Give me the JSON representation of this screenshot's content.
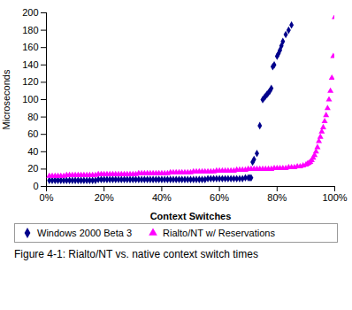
{
  "chart_data": {
    "type": "scatter",
    "caption": "Figure 4-1: Rialto/NT vs. native context switch times",
    "xlabel": "Context Switches",
    "ylabel": "Microseconds",
    "xlim": [
      0,
      1.0
    ],
    "ylim": [
      0,
      200
    ],
    "xticks": [
      {
        "value": 0.0,
        "label": "0%"
      },
      {
        "value": 0.2,
        "label": "20%"
      },
      {
        "value": 0.4,
        "label": "40%"
      },
      {
        "value": 0.6,
        "label": "60%"
      },
      {
        "value": 0.8,
        "label": "80%"
      },
      {
        "value": 1.0,
        "label": "100%"
      }
    ],
    "yticks": [
      0,
      20,
      40,
      60,
      80,
      100,
      120,
      140,
      160,
      180,
      200
    ],
    "grid": false,
    "legend": "bottom",
    "series": [
      {
        "name": "Windows 2000 Beta 3",
        "color": "#00008B",
        "marker": "diamond",
        "x": [
          0.01,
          0.02,
          0.03,
          0.04,
          0.05,
          0.06,
          0.07,
          0.08,
          0.09,
          0.1,
          0.11,
          0.12,
          0.13,
          0.14,
          0.15,
          0.16,
          0.17,
          0.18,
          0.19,
          0.2,
          0.21,
          0.22,
          0.23,
          0.24,
          0.25,
          0.26,
          0.27,
          0.28,
          0.29,
          0.3,
          0.31,
          0.32,
          0.33,
          0.34,
          0.35,
          0.36,
          0.37,
          0.38,
          0.39,
          0.4,
          0.41,
          0.42,
          0.43,
          0.44,
          0.45,
          0.46,
          0.47,
          0.48,
          0.49,
          0.5,
          0.51,
          0.52,
          0.53,
          0.54,
          0.55,
          0.56,
          0.57,
          0.58,
          0.59,
          0.6,
          0.61,
          0.62,
          0.63,
          0.64,
          0.65,
          0.66,
          0.67,
          0.68,
          0.69,
          0.7,
          0.705,
          0.71,
          0.715,
          0.72,
          0.73,
          0.74,
          0.75,
          0.755,
          0.76,
          0.765,
          0.77,
          0.775,
          0.78,
          0.785,
          0.79,
          0.8,
          0.805,
          0.81,
          0.815,
          0.82,
          0.83,
          0.84,
          0.85
        ],
        "values": [
          7,
          7,
          7,
          7,
          7,
          7,
          7,
          7,
          7,
          7,
          7,
          7,
          7,
          7,
          7,
          7,
          7,
          8,
          8,
          8,
          8,
          8,
          8,
          8,
          8,
          8,
          8,
          8,
          8,
          8,
          8,
          8,
          8,
          8,
          8,
          8,
          8,
          8,
          8,
          8,
          8,
          8,
          8,
          8,
          8,
          8,
          8,
          8,
          8,
          8,
          8,
          8,
          8,
          8,
          8,
          9,
          9,
          9,
          9,
          9,
          9,
          9,
          9,
          9,
          9,
          9,
          9,
          9,
          10,
          10,
          10,
          10,
          28,
          31,
          38,
          70,
          100,
          102,
          104,
          106,
          108,
          110,
          113,
          138,
          140,
          150,
          153,
          157,
          162,
          167,
          175,
          180,
          186
        ]
      },
      {
        "name": "Rialto/NT w/ Reservations",
        "color": "#FF00FF",
        "marker": "triangle",
        "x": [
          0.01,
          0.02,
          0.03,
          0.04,
          0.05,
          0.06,
          0.07,
          0.08,
          0.09,
          0.1,
          0.11,
          0.12,
          0.13,
          0.14,
          0.15,
          0.16,
          0.17,
          0.18,
          0.19,
          0.2,
          0.21,
          0.22,
          0.23,
          0.24,
          0.25,
          0.26,
          0.27,
          0.28,
          0.29,
          0.3,
          0.31,
          0.32,
          0.33,
          0.34,
          0.35,
          0.36,
          0.37,
          0.38,
          0.39,
          0.4,
          0.41,
          0.42,
          0.43,
          0.44,
          0.45,
          0.46,
          0.47,
          0.48,
          0.49,
          0.5,
          0.51,
          0.52,
          0.53,
          0.54,
          0.55,
          0.56,
          0.57,
          0.58,
          0.59,
          0.6,
          0.61,
          0.62,
          0.63,
          0.64,
          0.65,
          0.66,
          0.67,
          0.68,
          0.69,
          0.7,
          0.71,
          0.72,
          0.73,
          0.74,
          0.75,
          0.76,
          0.77,
          0.78,
          0.79,
          0.8,
          0.81,
          0.82,
          0.83,
          0.84,
          0.85,
          0.86,
          0.87,
          0.88,
          0.89,
          0.9,
          0.905,
          0.91,
          0.915,
          0.92,
          0.925,
          0.93,
          0.935,
          0.94,
          0.945,
          0.95,
          0.955,
          0.96,
          0.965,
          0.97,
          0.975,
          0.98,
          0.985,
          0.99,
          0.995,
          1.0
        ],
        "values": [
          12,
          12,
          12,
          12,
          12,
          12,
          13,
          13,
          13,
          13,
          13,
          13,
          13,
          13,
          13,
          13,
          13,
          14,
          14,
          14,
          14,
          14,
          14,
          14,
          14,
          14,
          14,
          14,
          14,
          14,
          14,
          15,
          15,
          15,
          15,
          15,
          15,
          15,
          15,
          15,
          15,
          15,
          16,
          16,
          16,
          16,
          16,
          16,
          16,
          16,
          17,
          17,
          17,
          17,
          17,
          17,
          17,
          17,
          18,
          18,
          18,
          18,
          18,
          18,
          18,
          19,
          19,
          19,
          19,
          20,
          20,
          20,
          20,
          20,
          20,
          20,
          20,
          20,
          21,
          21,
          21,
          21,
          21,
          22,
          22,
          22,
          23,
          23,
          24,
          25,
          26,
          27,
          28,
          30,
          33,
          36,
          40,
          45,
          52,
          57,
          63,
          68,
          75,
          82,
          90,
          100,
          110,
          125,
          150,
          195
        ]
      }
    ]
  }
}
